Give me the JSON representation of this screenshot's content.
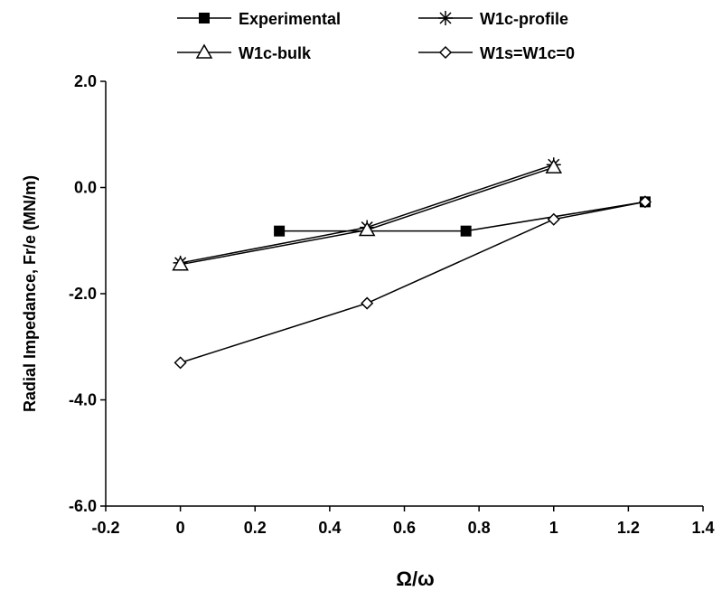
{
  "chart_data": {
    "type": "line",
    "title": "",
    "xlabel": "Ω/ω",
    "ylabel": "Radial Impedance, Fr/e (MN/m)",
    "xlim": [
      -0.2,
      1.4
    ],
    "ylim": [
      -6.0,
      2.0
    ],
    "x_ticks": [
      "-0.2",
      "0",
      "0.2",
      "0.4",
      "0.6",
      "0.8",
      "1",
      "1.2",
      "1.4"
    ],
    "y_ticks": [
      "2.0",
      "0.0",
      "-2.0",
      "-4.0",
      "-6.0"
    ],
    "legend_position": "top",
    "grid": false,
    "series": [
      {
        "name": "Experimental",
        "marker": "square-filled",
        "x": [
          0.265,
          0.765,
          1.245
        ],
        "y": [
          -0.82,
          -0.82,
          -0.27
        ],
        "x_first": 0.265,
        "y_first": -0.82,
        "prepend_segment_from": [
          0.5,
          -0.82
        ]
      },
      {
        "name": "W1c-profile",
        "marker": "asterisk",
        "x": [
          0,
          0.5,
          1
        ],
        "y": [
          -1.42,
          -0.75,
          0.43
        ]
      },
      {
        "name": "W1c-bulk",
        "marker": "triangle-open",
        "x": [
          0,
          0.5,
          1
        ],
        "y": [
          -1.45,
          -0.8,
          0.38
        ]
      },
      {
        "name": "W1s=W1c=0",
        "marker": "diamond-open",
        "x": [
          0,
          0.5,
          1,
          1.245
        ],
        "y": [
          -3.3,
          -2.18,
          -0.6,
          -0.27
        ]
      }
    ]
  }
}
